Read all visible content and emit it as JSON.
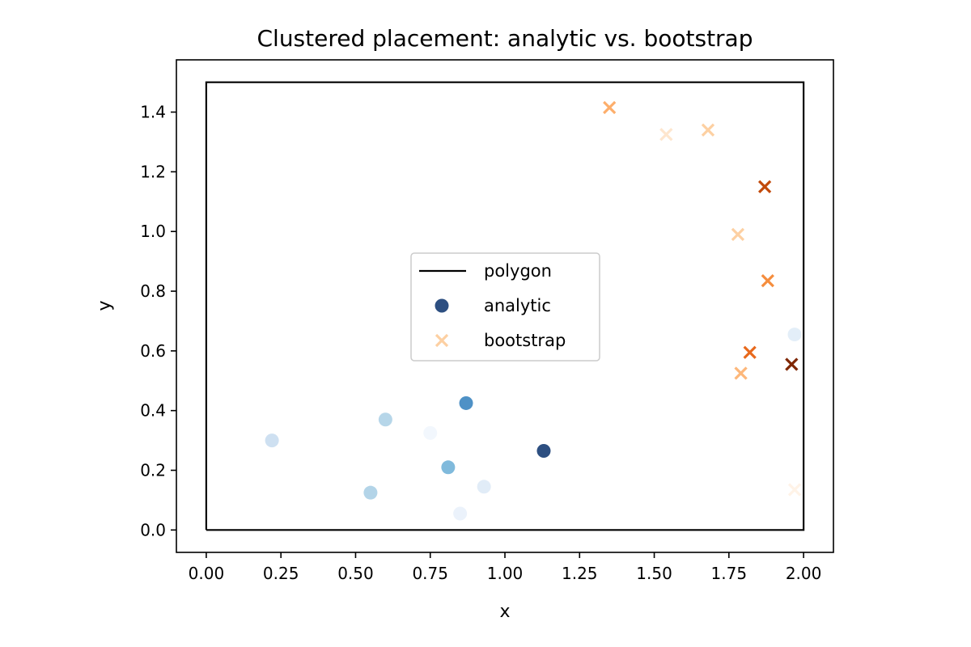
{
  "chart_data": {
    "type": "scatter",
    "title": "Clustered placement: analytic vs. bootstrap",
    "xlabel": "x",
    "ylabel": "y",
    "xlim": [
      -0.1,
      2.1
    ],
    "ylim": [
      -0.075,
      1.575
    ],
    "xticks": [
      0.0,
      0.25,
      0.5,
      0.75,
      1.0,
      1.25,
      1.5,
      1.75,
      2.0
    ],
    "xtick_labels": [
      "0.00",
      "0.25",
      "0.50",
      "0.75",
      "1.00",
      "1.25",
      "1.50",
      "1.75",
      "2.00"
    ],
    "yticks": [
      0.0,
      0.2,
      0.4,
      0.6,
      0.8,
      1.0,
      1.2,
      1.4
    ],
    "ytick_labels": [
      "0.0",
      "0.2",
      "0.4",
      "0.6",
      "0.8",
      "1.0",
      "1.2",
      "1.4"
    ],
    "grid": false,
    "legend": {
      "position": "center",
      "entries": [
        {
          "label": "polygon",
          "kind": "line",
          "color": "#000000"
        },
        {
          "label": "analytic",
          "kind": "circle",
          "color": "#08306b"
        },
        {
          "label": "bootstrap",
          "kind": "x",
          "color": "#fdd0a2"
        }
      ]
    },
    "polygon": {
      "name": "polygon",
      "color": "#000000",
      "vertices": [
        [
          0,
          0
        ],
        [
          2,
          0
        ],
        [
          2,
          1.5
        ],
        [
          0,
          1.5
        ],
        [
          0,
          0
        ]
      ]
    },
    "series": [
      {
        "name": "analytic",
        "marker": "circle",
        "points": [
          {
            "x": 0.22,
            "y": 0.3,
            "color": "#c6dbef"
          },
          {
            "x": 0.55,
            "y": 0.125,
            "color": "#a6cde4"
          },
          {
            "x": 0.6,
            "y": 0.37,
            "color": "#a9cfe5"
          },
          {
            "x": 0.75,
            "y": 0.325,
            "color": "#f0f6fd"
          },
          {
            "x": 0.81,
            "y": 0.21,
            "color": "#6aaed6"
          },
          {
            "x": 0.85,
            "y": 0.055,
            "color": "#e7f0fa"
          },
          {
            "x": 0.87,
            "y": 0.425,
            "color": "#2f7ebc"
          },
          {
            "x": 0.93,
            "y": 0.145,
            "color": "#dce9f6"
          },
          {
            "x": 1.13,
            "y": 0.265,
            "color": "#08306b"
          },
          {
            "x": 1.97,
            "y": 0.655,
            "color": "#deebf7"
          }
        ]
      },
      {
        "name": "bootstrap",
        "marker": "x",
        "points": [
          {
            "x": 1.35,
            "y": 1.415,
            "color": "#fdae6b"
          },
          {
            "x": 1.54,
            "y": 1.325,
            "color": "#fee6ce"
          },
          {
            "x": 1.68,
            "y": 1.34,
            "color": "#fdd0a2"
          },
          {
            "x": 1.87,
            "y": 1.15,
            "color": "#c2490a"
          },
          {
            "x": 1.78,
            "y": 0.99,
            "color": "#fdd0a2"
          },
          {
            "x": 1.88,
            "y": 0.835,
            "color": "#f58d3d"
          },
          {
            "x": 1.82,
            "y": 0.595,
            "color": "#e8691c"
          },
          {
            "x": 1.79,
            "y": 0.525,
            "color": "#fdb77a"
          },
          {
            "x": 1.96,
            "y": 0.555,
            "color": "#7f2704"
          },
          {
            "x": 1.97,
            "y": 0.135,
            "color": "#fff3e7"
          }
        ]
      }
    ]
  }
}
